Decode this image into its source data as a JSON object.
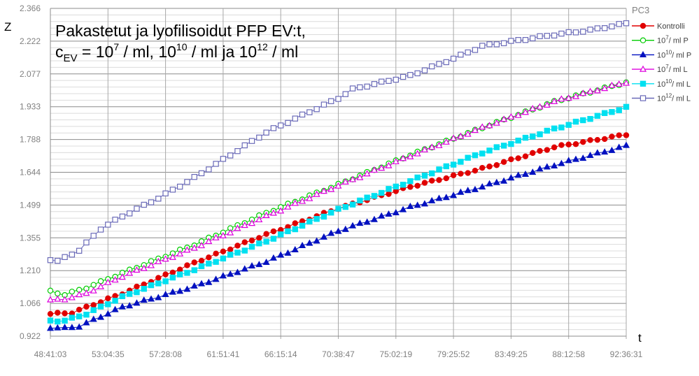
{
  "chart_data": {
    "type": "line",
    "panel_label": "PC3",
    "title_line1": "Pakastetut ja lyofilisoidut PFP EV:t,",
    "title_line2": {
      "c": "c",
      "sub": "EV",
      "eq": " = 10",
      "sup1": "7",
      "t1": " / ml, 10",
      "sup2": "10",
      "t2": " / ml ja 10",
      "sup3": "12",
      "t3": " / ml"
    },
    "ylabel": "Z",
    "xlabel": "t",
    "ylim": [
      0.922,
      2.366
    ],
    "yticks": [
      "0.922",
      "1.066",
      "1.210",
      "1.355",
      "1.499",
      "1.644",
      "1.788",
      "1.933",
      "2.077",
      "2.222",
      "2.366"
    ],
    "xticks": [
      "48:41:03",
      "53:04:35",
      "57:28:08",
      "61:51:41",
      "66:15:14",
      "70:38:47",
      "75:02:19",
      "79:25:52",
      "83:49:25",
      "88:12:58",
      "92:36:31"
    ],
    "xlim_hours": [
      48.684,
      92.609
    ],
    "n_points": 81,
    "grid": true,
    "legend_position": "right",
    "series": [
      {
        "name": {
          "base": "Kontrolli"
        },
        "color": "#e00000",
        "marker": "circle-filled",
        "knots": [
          [
            0,
            1.02
          ],
          [
            3,
            1.025
          ],
          [
            10,
            1.11
          ],
          [
            20,
            1.245
          ],
          [
            30,
            1.37
          ],
          [
            40,
            1.485
          ],
          [
            50,
            1.58
          ],
          [
            60,
            1.66
          ],
          [
            70,
            1.755
          ],
          [
            80,
            1.81
          ]
        ]
      },
      {
        "name": {
          "base": "10",
          "sup": "7",
          "rest": "/ ml P"
        },
        "color": "#00cc00",
        "marker": "circle-open",
        "knots": [
          [
            0,
            1.12
          ],
          [
            2,
            1.105
          ],
          [
            5,
            1.135
          ],
          [
            10,
            1.2
          ],
          [
            20,
            1.325
          ],
          [
            30,
            1.465
          ],
          [
            40,
            1.59
          ],
          [
            50,
            1.72
          ],
          [
            60,
            1.84
          ],
          [
            70,
            1.955
          ],
          [
            80,
            2.04
          ]
        ]
      },
      {
        "name": {
          "base": "10",
          "sup": "10",
          "rest": "/ ml P"
        },
        "color": "#0010c0",
        "marker": "triangle-filled",
        "knots": [
          [
            0,
            0.96
          ],
          [
            2,
            0.957
          ],
          [
            4,
            0.965
          ],
          [
            10,
            1.05
          ],
          [
            20,
            1.14
          ],
          [
            30,
            1.25
          ],
          [
            40,
            1.385
          ],
          [
            50,
            1.49
          ],
          [
            60,
            1.58
          ],
          [
            70,
            1.675
          ],
          [
            80,
            1.76
          ]
        ]
      },
      {
        "name": {
          "base": "10",
          "sup": "7",
          "rest": "/ ml L"
        },
        "color": "#dd00dd",
        "marker": "triangle-open",
        "knots": [
          [
            0,
            1.08
          ],
          [
            2,
            1.085
          ],
          [
            5,
            1.11
          ],
          [
            10,
            1.185
          ],
          [
            20,
            1.31
          ],
          [
            30,
            1.45
          ],
          [
            40,
            1.585
          ],
          [
            50,
            1.715
          ],
          [
            60,
            1.84
          ],
          [
            70,
            1.955
          ],
          [
            80,
            2.04
          ]
        ]
      },
      {
        "name": {
          "base": "10",
          "sup": "10",
          "rest": "/ ml L"
        },
        "color": "#00e0f0",
        "marker": "square-filled",
        "knots": [
          [
            0,
            0.99
          ],
          [
            2,
            0.99
          ],
          [
            5,
            1.02
          ],
          [
            10,
            1.095
          ],
          [
            20,
            1.215
          ],
          [
            30,
            1.34
          ],
          [
            40,
            1.48
          ],
          [
            50,
            1.605
          ],
          [
            60,
            1.73
          ],
          [
            70,
            1.835
          ],
          [
            80,
            1.93
          ]
        ]
      },
      {
        "name": {
          "base": "10",
          "sup": "12",
          "rest": "/ ml L"
        },
        "color": "#6a6ab8",
        "marker": "square-open",
        "knots": [
          [
            0,
            1.26
          ],
          [
            1,
            1.252
          ],
          [
            4,
            1.3
          ],
          [
            7,
            1.395
          ],
          [
            10,
            1.45
          ],
          [
            15,
            1.53
          ],
          [
            20,
            1.62
          ],
          [
            25,
            1.72
          ],
          [
            30,
            1.82
          ],
          [
            35,
            1.895
          ],
          [
            40,
            1.97
          ],
          [
            42,
            2.01
          ],
          [
            50,
            2.07
          ],
          [
            56,
            2.145
          ],
          [
            60,
            2.2
          ],
          [
            65,
            2.225
          ],
          [
            70,
            2.25
          ],
          [
            75,
            2.27
          ],
          [
            80,
            2.3
          ]
        ]
      }
    ]
  }
}
